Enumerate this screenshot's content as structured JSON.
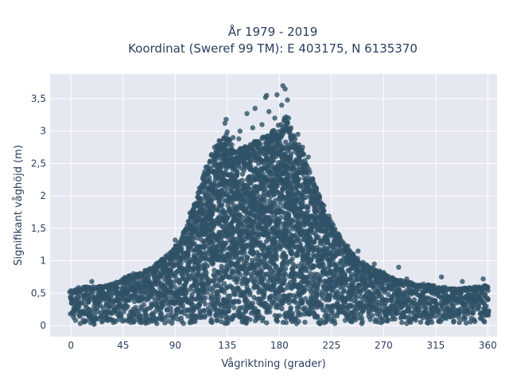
{
  "chart_data": {
    "type": "scatter",
    "title_line1": "År 1979 - 2019",
    "title_line2": "Koordinat (Sweref 99 TM): E 403175, N 6135370",
    "xlabel": "Vågriktning (grader)",
    "ylabel": "Signifikant våghöjd (m)",
    "xlim": [
      -18,
      368
    ],
    "ylim": [
      -0.17,
      3.88
    ],
    "x_ticks": [
      0,
      45,
      90,
      135,
      180,
      225,
      270,
      315,
      360
    ],
    "x_tick_labels": [
      "0",
      "45",
      "90",
      "135",
      "180",
      "225",
      "270",
      "315",
      "360"
    ],
    "y_ticks": [
      0,
      0.5,
      1,
      1.5,
      2,
      2.5,
      3,
      3.5
    ],
    "y_tick_labels": [
      "0",
      "0,5",
      "1",
      "1,5",
      "2",
      "2,5",
      "3",
      "3,5"
    ],
    "grid": true,
    "marker_color": "#2f5166",
    "plot_background": "#e5e8f0",
    "upper_envelope": [
      [
        0,
        0.55
      ],
      [
        10,
        0.6
      ],
      [
        20,
        0.6
      ],
      [
        30,
        0.62
      ],
      [
        40,
        0.68
      ],
      [
        50,
        0.78
      ],
      [
        60,
        0.82
      ],
      [
        70,
        0.9
      ],
      [
        80,
        1.05
      ],
      [
        90,
        1.2
      ],
      [
        100,
        1.55
      ],
      [
        110,
        2.1
      ],
      [
        120,
        2.6
      ],
      [
        130,
        2.9
      ],
      [
        135,
        3.0
      ],
      [
        140,
        2.7
      ],
      [
        150,
        2.75
      ],
      [
        160,
        2.85
      ],
      [
        170,
        2.95
      ],
      [
        180,
        3.1
      ],
      [
        185,
        3.3
      ],
      [
        190,
        3.0
      ],
      [
        200,
        2.7
      ],
      [
        210,
        2.2
      ],
      [
        220,
        1.75
      ],
      [
        230,
        1.45
      ],
      [
        240,
        1.2
      ],
      [
        250,
        1.0
      ],
      [
        260,
        0.9
      ],
      [
        270,
        0.8
      ],
      [
        280,
        0.72
      ],
      [
        290,
        0.68
      ],
      [
        300,
        0.65
      ],
      [
        310,
        0.63
      ],
      [
        320,
        0.6
      ],
      [
        330,
        0.58
      ],
      [
        340,
        0.58
      ],
      [
        350,
        0.6
      ],
      [
        360,
        0.62
      ]
    ],
    "outliers": [
      [
        134,
        3.18
      ],
      [
        133,
        3.12
      ],
      [
        152,
        3.27
      ],
      [
        159,
        3.35
      ],
      [
        168,
        3.52
      ],
      [
        169,
        3.55
      ],
      [
        178,
        3.56
      ],
      [
        183,
        3.7
      ],
      [
        185,
        3.65
      ],
      [
        187,
        3.48
      ],
      [
        182,
        3.4
      ],
      [
        176,
        3.2
      ],
      [
        190,
        3.05
      ],
      [
        146,
        3.0
      ],
      [
        165,
        3.1
      ],
      [
        171,
        3.3
      ],
      [
        196,
        2.95
      ],
      [
        230,
        1.3
      ],
      [
        283,
        0.9
      ],
      [
        248,
        1.15
      ],
      [
        262,
        0.95
      ],
      [
        290,
        0.72
      ],
      [
        320,
        0.75
      ],
      [
        338,
        0.68
      ],
      [
        356,
        0.72
      ],
      [
        99,
        1.48
      ],
      [
        90,
        1.32
      ],
      [
        78,
        0.9
      ],
      [
        72,
        0.88
      ],
      [
        64,
        0.85
      ],
      [
        20,
        0.02
      ],
      [
        18,
        0.68
      ],
      [
        54,
        0.8
      ],
      [
        115,
        2.3
      ],
      [
        124,
        2.75
      ],
      [
        128,
        2.85
      ],
      [
        140,
        2.9
      ],
      [
        145,
        2.88
      ],
      [
        157,
        3.05
      ],
      [
        174,
        3.0
      ],
      [
        188,
        3.2
      ],
      [
        200,
        2.75
      ],
      [
        205,
        2.6
      ],
      [
        212,
        2.1
      ],
      [
        218,
        1.7
      ],
      [
        223,
        1.5
      ],
      [
        245,
        1.05
      ],
      [
        270,
        0.82
      ]
    ]
  }
}
